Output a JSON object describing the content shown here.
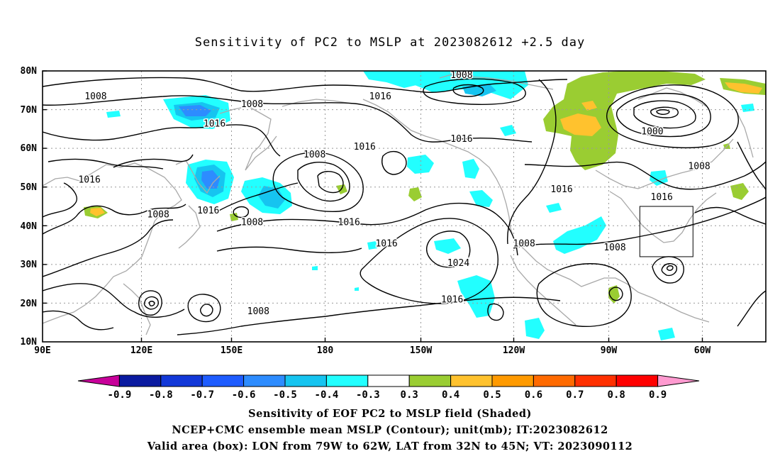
{
  "title": "Sensitivity of PC2 to MSLP at 2023082612 +2.5 day",
  "lat_ticks": [
    "80N",
    "70N",
    "60N",
    "50N",
    "40N",
    "30N",
    "20N",
    "10N"
  ],
  "lon_ticks": [
    "90E",
    "120E",
    "150E",
    "180",
    "150W",
    "120W",
    "90W",
    "60W"
  ],
  "colorbar": {
    "labels": [
      "-0.9",
      "-0.8",
      "-0.7",
      "-0.6",
      "-0.5",
      "-0.4",
      "-0.3",
      "0.3",
      "0.4",
      "0.5",
      "0.6",
      "0.7",
      "0.8",
      "0.9"
    ],
    "colors": [
      "#c8009a",
      "#0a1aa0",
      "#1238d8",
      "#1e5cff",
      "#2d8cff",
      "#16c4f0",
      "#22ffff",
      "#ffffff",
      "#9acd32",
      "#ffc22e",
      "#ff9a00",
      "#ff6a00",
      "#ff3000",
      "#ff0000",
      "#ff9ad0"
    ]
  },
  "contour_labels": [
    {
      "text": "1008",
      "lon": 107,
      "lat": 73
    },
    {
      "text": "1008",
      "lon": 157,
      "lat": 71
    },
    {
      "text": "1016",
      "lon": 145,
      "lat": 66
    },
    {
      "text": "1016",
      "lon": -162,
      "lat": 73
    },
    {
      "text": "1008",
      "lon": -136,
      "lat": 78.5
    },
    {
      "text": "1016",
      "lon": -167,
      "lat": 60
    },
    {
      "text": "1016",
      "lon": -136,
      "lat": 62
    },
    {
      "text": "1008",
      "lon": -183,
      "lat": 58
    },
    {
      "text": "1000",
      "lon": -75,
      "lat": 64
    },
    {
      "text": "1016",
      "lon": 105,
      "lat": 51.5
    },
    {
      "text": "1008",
      "lon": -60,
      "lat": 55
    },
    {
      "text": "1016",
      "lon": -104,
      "lat": 49
    },
    {
      "text": "1016",
      "lon": -72,
      "lat": 47
    },
    {
      "text": "1008",
      "lon": 127,
      "lat": 42.5
    },
    {
      "text": "1016",
      "lon": 143,
      "lat": 43.5
    },
    {
      "text": "1008",
      "lon": 157,
      "lat": 40.5
    },
    {
      "text": "1016",
      "lon": -172,
      "lat": 40.5
    },
    {
      "text": "1016",
      "lon": -160,
      "lat": 35
    },
    {
      "text": "1024",
      "lon": -137,
      "lat": 30
    },
    {
      "text": "1008",
      "lon": -116,
      "lat": 35
    },
    {
      "text": "1008",
      "lon": -87,
      "lat": 34
    },
    {
      "text": "1016",
      "lon": -139,
      "lat": 20.5
    },
    {
      "text": "1008",
      "lon": 159,
      "lat": 17.5
    }
  ],
  "valid_box": {
    "lon_min": -79,
    "lon_max": -62,
    "lat_min": 32,
    "lat_max": 45
  },
  "caption_lines": [
    "Sensitivity of EOF PC2 to MSLP field (Shaded)",
    "NCEP+CMC ensemble mean MSLP (Contour); unit(mb); IT:2023082612",
    "Valid area (box): LON from 79W to 62W, LAT from 32N to 45N; VT: 2023090112"
  ]
}
